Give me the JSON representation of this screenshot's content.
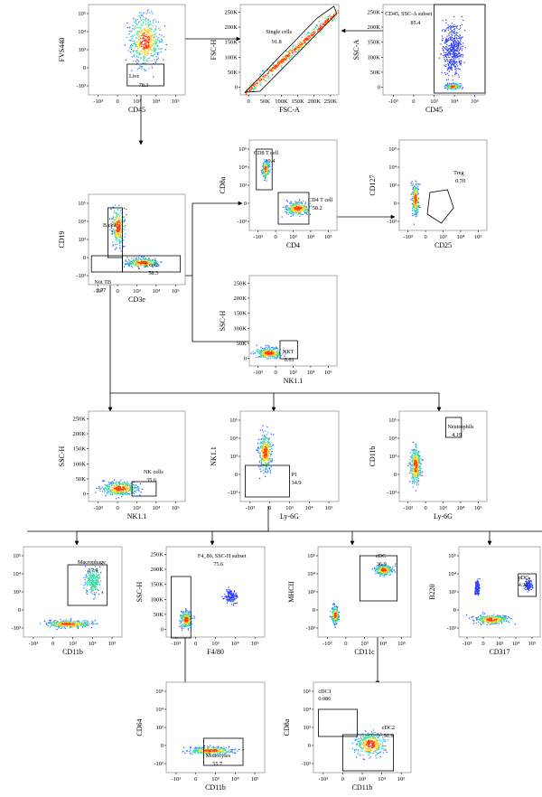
{
  "figure": {
    "panels": [
      {
        "id": "p1",
        "xlabel": "CD45",
        "ylabel": "FVS440",
        "xticks": [
          "-10³",
          "0",
          "10³",
          "10⁴",
          "10⁵"
        ],
        "yticks": [
          "10⁵",
          "10⁴",
          "10³",
          "0",
          "-10³"
        ],
        "gates": [
          {
            "name": "Live",
            "value": "78.3"
          }
        ]
      },
      {
        "id": "p2",
        "xlabel": "FSC-A",
        "ylabel": "FSC-H",
        "xticks": [
          "0",
          "50K",
          "100K",
          "150K",
          "200K",
          "250K"
        ],
        "yticks": [
          "250K",
          "200K",
          "150K",
          "100K",
          "50K",
          "0"
        ],
        "gates": [
          {
            "name": "Single cells",
            "value": "91.8"
          }
        ]
      },
      {
        "id": "p3",
        "xlabel": "CD45",
        "ylabel": "SSC-A",
        "xticks": [
          "-10³",
          "0",
          "10³",
          "10⁴",
          "10⁵"
        ],
        "yticks": [
          "250K",
          "200K",
          "150K",
          "100K",
          "50K",
          "0"
        ],
        "gates": [
          {
            "name": "CD45, SSC-A subset",
            "value": "85.4"
          }
        ]
      },
      {
        "id": "p4",
        "xlabel": "CD3e",
        "ylabel": "CD19",
        "xticks": [
          "-10³",
          "0",
          "10³",
          "10⁴",
          "10⁵"
        ],
        "yticks": [
          "10⁵",
          "10⁴",
          "10³",
          "0",
          "-10³"
        ],
        "gates": [
          {
            "name": "B cell",
            "value": "3"
          },
          {
            "name": "T cells",
            "value": "58.3"
          },
          {
            "name": "Not TB",
            "value": "3.77"
          }
        ]
      },
      {
        "id": "p5",
        "xlabel": "CD4",
        "ylabel": "CD8a",
        "xticks": [
          "-10³",
          "0",
          "10³",
          "10⁴",
          "10⁵"
        ],
        "yticks": [
          "10⁵",
          "10⁴",
          "10³",
          "0",
          "-10³"
        ],
        "gates": [
          {
            "name": "CD8 T cell",
            "value": "39.4"
          },
          {
            "name": "CD4 T cell",
            "value": "58.2"
          }
        ]
      },
      {
        "id": "p6",
        "xlabel": "CD25",
        "ylabel": "CD127",
        "xticks": [
          "-10³",
          "0",
          "10³",
          "10⁴",
          "10⁵"
        ],
        "yticks": [
          "10⁵",
          "10⁴",
          "10³",
          "0",
          "-10³"
        ],
        "gates": [
          {
            "name": "Treg",
            "value": "0.70"
          }
        ]
      },
      {
        "id": "p7",
        "xlabel": "NK1.1",
        "ylabel": "SSC-H",
        "xticks": [
          "-10³",
          "0",
          "10³",
          "10⁴",
          "10⁵"
        ],
        "yticks": [
          "250K",
          "200K",
          "150K",
          "100K",
          "50K",
          "0"
        ],
        "gates": [
          {
            "name": "NKT",
            "value": "0.61"
          }
        ]
      },
      {
        "id": "p8",
        "xlabel": "NK1.1",
        "ylabel": "SSC-H",
        "xticks": [
          "-10³",
          "0",
          "10³",
          "10⁴",
          "10⁵"
        ],
        "yticks": [
          "250K",
          "200K",
          "150K",
          "100K",
          "50K",
          "0"
        ],
        "gates": [
          {
            "name": "NK cells",
            "value": "35.6"
          }
        ]
      },
      {
        "id": "p9",
        "xlabel": "Ly-6G",
        "ylabel": "NK1.1",
        "xticks": [
          "-10³",
          "0",
          "10³",
          "10⁴",
          "10⁵"
        ],
        "yticks": [
          "10⁵",
          "10⁴",
          "10³",
          "0",
          "-10³"
        ],
        "gates": [
          {
            "name": "P1",
            "value": "34.9"
          }
        ]
      },
      {
        "id": "p10",
        "xlabel": "Ly-6G",
        "ylabel": "CD11b",
        "xticks": [
          "-10³",
          "0",
          "10³",
          "10⁴",
          "10⁵"
        ],
        "yticks": [
          "10⁵",
          "10⁴",
          "10³",
          "0",
          "-10³"
        ],
        "gates": [
          {
            "name": "Neutrophils",
            "value": "4.19"
          }
        ]
      },
      {
        "id": "p11",
        "xlabel": "CD11b",
        "ylabel": "F4/80",
        "xticks": [
          "-10³",
          "0",
          "10³",
          "10⁴",
          "10⁵"
        ],
        "yticks": [
          "10⁵",
          "10⁴",
          "10³",
          "0",
          "-10³"
        ],
        "gates": [
          {
            "name": "Macrophage",
            "value": "17.4"
          }
        ]
      },
      {
        "id": "p12",
        "xlabel": "F4/80",
        "ylabel": "SSC-H",
        "xticks": [
          "-10³",
          "0",
          "10³",
          "10⁴",
          "10⁵"
        ],
        "yticks": [
          "250K",
          "200K",
          "150K",
          "100K",
          "50K",
          "0"
        ],
        "gates": [
          {
            "name": "F4_80, SSC-H subset",
            "value": "75.6"
          }
        ]
      },
      {
        "id": "p13",
        "xlabel": "CD11c",
        "ylabel": "MHCII",
        "xticks": [
          "-10³",
          "0",
          "10³",
          "10⁴",
          "10⁵"
        ],
        "yticks": [
          "10⁵",
          "10⁴",
          "10³",
          "0",
          "-10³"
        ],
        "gates": [
          {
            "name": "cDC",
            "value": "36.9"
          }
        ]
      },
      {
        "id": "p14",
        "xlabel": "CD317",
        "ylabel": "B220",
        "xticks": [
          "-10³",
          "0",
          "10³",
          "10⁴",
          "10⁵"
        ],
        "yticks": [
          "10⁵",
          "10⁴",
          "10³",
          "0",
          "-10³"
        ],
        "gates": [
          {
            "name": "pDC",
            "value": "4.26"
          }
        ]
      },
      {
        "id": "p15",
        "xlabel": "CD11b",
        "ylabel": "CD64",
        "xticks": [
          "-10³",
          "0",
          "10³",
          "10⁴",
          "10⁵"
        ],
        "yticks": [
          "10⁵",
          "10⁴",
          "10³",
          "0",
          "-10³"
        ],
        "gates": [
          {
            "name": "Monocytes",
            "value": "55.7"
          }
        ]
      },
      {
        "id": "p16",
        "xlabel": "CD11b",
        "ylabel": "CD8a",
        "xticks": [
          "-10³",
          "0",
          "10³",
          "10⁴",
          "10⁵"
        ],
        "yticks": [
          "10⁵",
          "10⁴",
          "10³",
          "0",
          "-10³"
        ],
        "gates": [
          {
            "name": "cDC1",
            "value": "0.086"
          },
          {
            "name": "cDC2",
            "value": "91.9"
          }
        ]
      }
    ]
  },
  "colors": {
    "density_low": "#2c3cff",
    "density_mid": "#20d0b0",
    "density_high": "#ffe020",
    "density_peak": "#ff2a10",
    "gate": "#000000",
    "arrow": "#000000"
  }
}
